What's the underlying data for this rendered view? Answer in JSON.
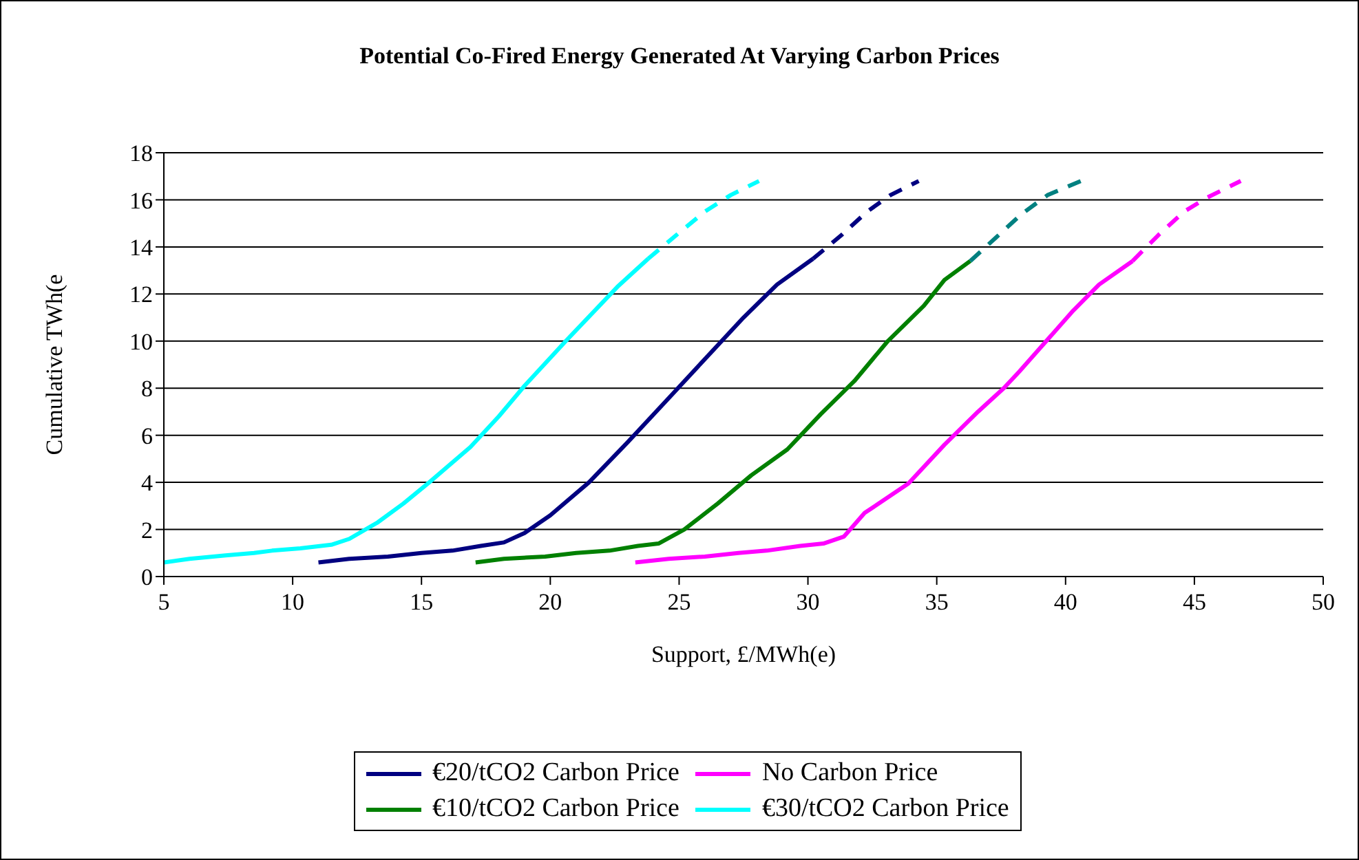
{
  "chart_data": {
    "type": "line",
    "title": "Potential Co-Fired Energy Generated At Varying Carbon Prices",
    "xlabel": "Support, £/MWh(e)",
    "ylabel": "Cumulative TWh(e",
    "xlim": [
      5,
      50
    ],
    "xticks": [
      5,
      10,
      15,
      20,
      25,
      30,
      35,
      40,
      45,
      50
    ],
    "ylim": [
      0,
      18
    ],
    "yticks": [
      0,
      2,
      4,
      6,
      8,
      10,
      12,
      14,
      16,
      18
    ],
    "grid": "y",
    "legend": "bottom",
    "marker": "none",
    "series": [
      {
        "name": "€20/tCO2 Carbon Price",
        "color": "#000080",
        "line_style": "solid",
        "x": [
          11,
          12.2,
          13.7,
          15,
          16.2,
          17.3,
          18.2,
          19,
          20,
          21.5,
          23,
          24.7,
          25.8,
          27.5,
          28.8,
          30.2
        ],
        "values": [
          0.6,
          0.75,
          0.85,
          1.0,
          1.1,
          1.3,
          1.45,
          1.85,
          2.6,
          4.0,
          5.7,
          7.7,
          9.0,
          11.0,
          12.4,
          13.5
        ]
      },
      {
        "name": "No Carbon Price",
        "color": "#ff00ff",
        "line_style": "solid",
        "x": [
          23.3,
          24.6,
          26,
          27.3,
          28.4,
          29.7,
          30.6,
          31.4,
          32.2,
          33.9,
          35.3,
          36.6,
          37.6,
          38.2,
          40.3,
          41.3,
          42.6
        ],
        "values": [
          0.6,
          0.75,
          0.85,
          1.0,
          1.1,
          1.3,
          1.4,
          1.7,
          2.7,
          3.95,
          5.6,
          7.0,
          8.0,
          8.7,
          11.3,
          12.4,
          13.4
        ]
      },
      {
        "name": "€10/tCO2 Carbon Price",
        "color": "#008000",
        "line_style": "solid",
        "x": [
          17.1,
          18.2,
          19.8,
          21,
          22.3,
          23.4,
          24.2,
          25.2,
          26.5,
          27.8,
          29.2,
          30.5,
          31.8,
          33.1,
          34.5,
          35.3,
          36.3
        ],
        "values": [
          0.6,
          0.75,
          0.85,
          1.0,
          1.1,
          1.3,
          1.4,
          2.0,
          3.1,
          4.3,
          5.4,
          6.9,
          8.3,
          10.0,
          11.5,
          12.6,
          13.4
        ]
      },
      {
        "name": "€30/tCO2 Carbon Price",
        "color": "#00ffff",
        "line_style": "solid",
        "x": [
          5,
          6,
          7.4,
          8.5,
          9.2,
          10.3,
          11.5,
          12.2,
          13.3,
          14.3,
          15.3,
          16.9,
          18,
          19,
          20.6,
          22.6,
          23.8
        ],
        "values": [
          0.6,
          0.75,
          0.9,
          1.0,
          1.1,
          1.2,
          1.35,
          1.6,
          2.3,
          3.1,
          4.0,
          5.5,
          6.8,
          8.1,
          10.0,
          12.3,
          13.5
        ]
      },
      {
        "color": "#000080",
        "line_style": "dashed",
        "x": [
          30.2,
          31.3,
          32.3,
          33.2,
          34.3
        ],
        "values": [
          13.5,
          14.5,
          15.5,
          16.2,
          16.8
        ]
      },
      {
        "color": "#ff00ff",
        "line_style": "dashed",
        "x": [
          42.6,
          43.6,
          44.6,
          45.5,
          46.8
        ],
        "values": [
          13.4,
          14.5,
          15.5,
          16.1,
          16.8
        ]
      },
      {
        "color": "#008080",
        "line_style": "dashed",
        "x": [
          36.3,
          37.3,
          38.3,
          39.3,
          40.6
        ],
        "values": [
          13.4,
          14.4,
          15.4,
          16.2,
          16.8
        ]
      },
      {
        "color": "#00ffff",
        "line_style": "dashed",
        "x": [
          23.8,
          25,
          26,
          27,
          28.1
        ],
        "values": [
          13.5,
          14.6,
          15.5,
          16.2,
          16.8
        ]
      }
    ]
  }
}
